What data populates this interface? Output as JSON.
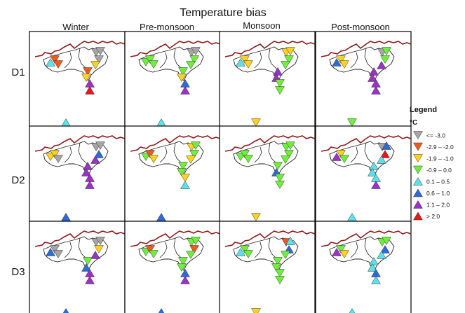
{
  "title": "Temperature bias",
  "columns": [
    "Winter",
    "Pre-monsoon",
    "Monsoon",
    "Post-monsoon"
  ],
  "rows": [
    "D1",
    "D2",
    "D3"
  ],
  "legend": {
    "title": "Legend",
    "unit": "°C",
    "classes": [
      {
        "label": "<= -3.0",
        "color": "#a6a6a6",
        "dir": "down"
      },
      {
        "label": "-2.9 – -2.0",
        "color": "#f05a1e",
        "dir": "down"
      },
      {
        "label": "-1.9 – -1.0",
        "color": "#ffd21e",
        "dir": "down"
      },
      {
        "label": "-0.9 – 0.0",
        "color": "#6ef03a",
        "dir": "down"
      },
      {
        "label": "0.1 – 0.5",
        "color": "#5ee0ea",
        "dir": "up"
      },
      {
        "label": "0.6 – 1.0",
        "color": "#2e6ad8",
        "dir": "up"
      },
      {
        "label": "1.1 – 2.0",
        "color": "#9a32c8",
        "dir": "up"
      },
      {
        "label": "> 2.0",
        "color": "#e31a1c",
        "dir": "up"
      }
    ]
  },
  "stations": [
    {
      "id": "s1",
      "x": 30,
      "y": 44
    },
    {
      "id": "s2",
      "x": 36,
      "y": 40
    },
    {
      "id": "s3",
      "x": 41,
      "y": 47
    },
    {
      "id": "s4",
      "x": 95,
      "y": 30
    },
    {
      "id": "s5",
      "x": 101,
      "y": 28
    },
    {
      "id": "s6",
      "x": 99,
      "y": 40
    },
    {
      "id": "s7",
      "x": 94,
      "y": 48
    },
    {
      "id": "s8",
      "x": 83,
      "y": 57
    },
    {
      "id": "s9",
      "x": 81,
      "y": 66
    },
    {
      "id": "s10",
      "x": 86,
      "y": 74
    },
    {
      "id": "s11",
      "x": 86,
      "y": 84
    },
    {
      "id": "s12",
      "x": 52,
      "y": 130
    }
  ],
  "panels": [
    {
      "row": 0,
      "col": 0,
      "classes": [
        4,
        1,
        1,
        0,
        0,
        0,
        2,
        1,
        2,
        6,
        7,
        4
      ]
    },
    {
      "row": 0,
      "col": 1,
      "classes": [
        3,
        3,
        3,
        0,
        0,
        3,
        3,
        3,
        2,
        5,
        6,
        4
      ]
    },
    {
      "row": 0,
      "col": 2,
      "classes": [
        4,
        2,
        2,
        2,
        2,
        3,
        3,
        6,
        6,
        3,
        3,
        2
      ]
    },
    {
      "row": 0,
      "col": 3,
      "classes": [
        5,
        2,
        2,
        0,
        3,
        3,
        6,
        6,
        6,
        6,
        6,
        3
      ]
    },
    {
      "row": 1,
      "col": 0,
      "classes": [
        2,
        2,
        0,
        0,
        0,
        5,
        6,
        6,
        6,
        6,
        6,
        5
      ]
    },
    {
      "row": 1,
      "col": 1,
      "classes": [
        3,
        1,
        2,
        2,
        3,
        3,
        2,
        3,
        3,
        2,
        4,
        5
      ]
    },
    {
      "row": 1,
      "col": 2,
      "classes": [
        3,
        3,
        3,
        3,
        3,
        3,
        3,
        3,
        5,
        3,
        3,
        2
      ]
    },
    {
      "row": 1,
      "col": 3,
      "classes": [
        6,
        2,
        3,
        0,
        5,
        7,
        4,
        4,
        4,
        4,
        6,
        4
      ]
    },
    {
      "row": 2,
      "col": 0,
      "classes": [
        5,
        0,
        0,
        0,
        0,
        2,
        6,
        3,
        5,
        6,
        6,
        5
      ]
    },
    {
      "row": 2,
      "col": 1,
      "classes": [
        3,
        1,
        3,
        3,
        3,
        1,
        3,
        3,
        3,
        5,
        6,
        5
      ]
    },
    {
      "row": 2,
      "col": 2,
      "classes": [
        4,
        3,
        3,
        1,
        4,
        5,
        3,
        3,
        3,
        3,
        3,
        2
      ]
    },
    {
      "row": 2,
      "col": 3,
      "classes": [
        6,
        3,
        2,
        3,
        3,
        5,
        4,
        4,
        4,
        5,
        4,
        4
      ]
    }
  ]
}
